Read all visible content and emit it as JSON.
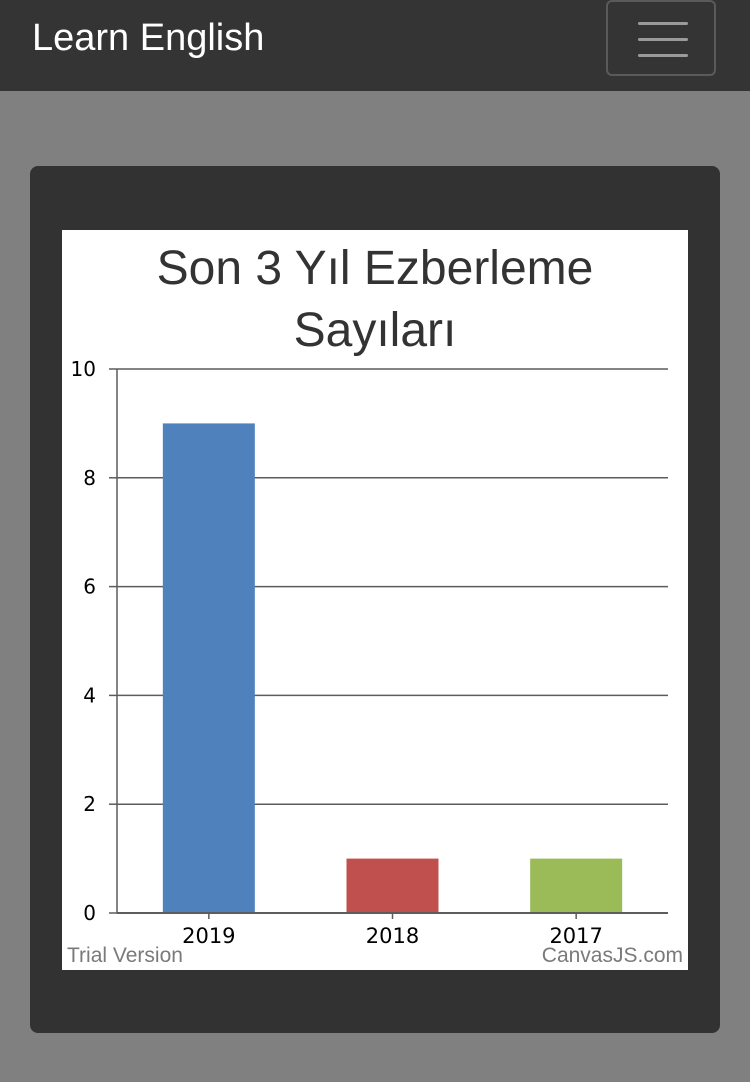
{
  "navbar": {
    "brand": "Learn English",
    "toggle_icon": "hamburger-menu-icon"
  },
  "chart": {
    "title_line1": "Son 3 Yıl Ezberleme",
    "title_line2": "Sayıları",
    "watermark_left": "Trial Version",
    "watermark_right": "CanvasJS.com"
  },
  "chart_data": {
    "type": "bar",
    "title": "Son 3 Yıl Ezberleme Sayıları",
    "categories": [
      "2019",
      "2018",
      "2017"
    ],
    "values": [
      9,
      1,
      1
    ],
    "colors": [
      "#4F81BC",
      "#C0504E",
      "#9BBB58"
    ],
    "xlabel": "",
    "ylabel": "",
    "ylim": [
      0,
      10
    ],
    "yticks": [
      0,
      2,
      4,
      6,
      8,
      10
    ],
    "grid": true,
    "legend": "none"
  }
}
